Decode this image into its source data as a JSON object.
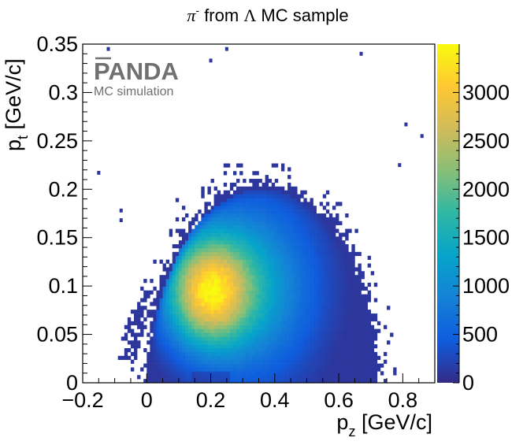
{
  "chart_data": {
    "type": "heatmap",
    "title": "π⁻ from Λ MC sample",
    "title_symbol": "π",
    "title_sup": "-",
    "title_from": " from ",
    "title_lambda": "Λ",
    "title_rest": " MC sample",
    "xlabel_main": "p",
    "xlabel_sub": "z",
    "xlabel_unit": " [GeV/c]",
    "ylabel_main": "p",
    "ylabel_sub": "t",
    "ylabel_unit": " [GeV/c]",
    "xlim": [
      -0.2,
      0.9
    ],
    "ylim": [
      0,
      0.35
    ],
    "zlim": [
      0,
      3500
    ],
    "x_ticks": [
      -0.2,
      0,
      0.2,
      0.4,
      0.6,
      0.8
    ],
    "x_tick_labels": [
      "−0.2",
      "0",
      "0.2",
      "0.4",
      "0.6",
      "0.8"
    ],
    "y_ticks": [
      0,
      0.05,
      0.1,
      0.15,
      0.2,
      0.25,
      0.3,
      0.35
    ],
    "y_tick_labels": [
      "0",
      "0.05",
      "0.1",
      "0.15",
      "0.2",
      "0.25",
      "0.3",
      "0.35"
    ],
    "z_ticks": [
      0,
      500,
      1000,
      1500,
      2000,
      2500,
      3000
    ],
    "z_tick_labels": [
      "0",
      "500",
      "1000",
      "1500",
      "2000",
      "2500",
      "3000"
    ],
    "peak": {
      "pz": 0.19,
      "pt": 0.095,
      "count": 3450
    },
    "kinematic_boundary": "ellipse centered near pz 0.32, pt 0; reaches pz -0.02 and 0.74; max pt ~0.21",
    "sparse_outliers": [
      {
        "pz": -0.12,
        "pt": 0.345
      },
      {
        "pz": 0.25,
        "pt": 0.345
      },
      {
        "pz": 0.67,
        "pt": 0.34
      },
      {
        "pz": 0.2,
        "pt": 0.333
      },
      {
        "pz": 0.81,
        "pt": 0.267
      },
      {
        "pz": 0.86,
        "pt": 0.255
      },
      {
        "pz": 0.79,
        "pt": 0.225
      },
      {
        "pz": -0.15,
        "pt": 0.217
      },
      {
        "pz": -0.08,
        "pt": 0.178
      },
      {
        "pz": -0.08,
        "pt": 0.168
      }
    ],
    "watermark_title": "PANDA",
    "watermark_subtitle": "MC simulation",
    "palette": [
      "#352a87",
      "#0f5cdd",
      "#1481d6",
      "#06a4ca",
      "#2eb7a4",
      "#87bf77",
      "#d1bb59",
      "#fec832",
      "#f9fb0e"
    ]
  }
}
